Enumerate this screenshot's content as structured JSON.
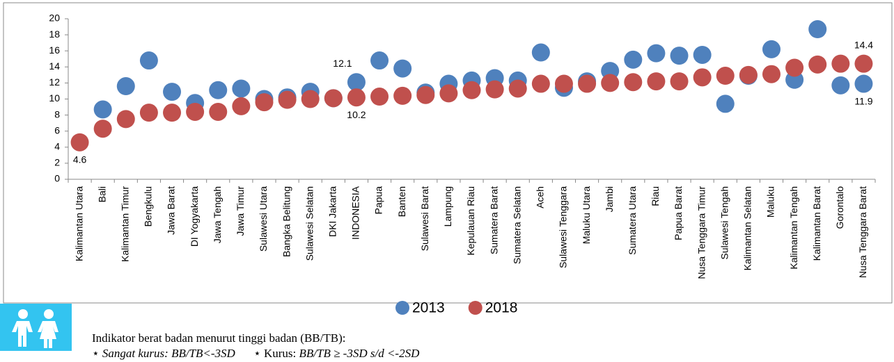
{
  "chart_data": {
    "type": "dot",
    "categories": [
      "Kalimantan Utara",
      "Bali",
      "Kalimantan Timur",
      "Bengkulu",
      "Jawa Barat",
      "DI Yogyakarta",
      "Jawa Tengah",
      "Jawa Timur",
      "Sulawesi Utara",
      "Bangka Belitung",
      "Sulawesi Selatan",
      "DKI Jakarta",
      "INDONESIA",
      "Papua",
      "Banten",
      "Sulawesi Barat",
      "Lampung",
      "Kepulauan Riau",
      "Sumatera Barat",
      "Sumatera Selatan",
      "Aceh",
      "Sulawesi Tenggara",
      "Maluku Utara",
      "Jambi",
      "Sumatera Utara",
      "Riau",
      "Papua Barat",
      "Nusa Tenggara Timur",
      "Sulawesi Tengah",
      "Kalimantan Selatan",
      "Maluku",
      "Kalimantan Tengah",
      "Kalimantan Barat",
      "Gorontalo",
      "Nusa Tenggara Barat"
    ],
    "series": [
      {
        "name": "2013",
        "color": "#4f81bd",
        "values": [
          null,
          8.7,
          11.6,
          14.8,
          10.9,
          9.5,
          11.1,
          11.3,
          10.0,
          10.2,
          10.9,
          10.1,
          12.1,
          14.8,
          13.8,
          10.8,
          11.9,
          12.3,
          12.6,
          12.3,
          15.8,
          11.4,
          12.2,
          13.5,
          14.9,
          15.7,
          15.4,
          15.5,
          9.4,
          12.9,
          16.2,
          12.4,
          18.7,
          11.7,
          11.9
        ],
        "value_labels": [
          null,
          null,
          null,
          null,
          null,
          null,
          null,
          null,
          null,
          null,
          null,
          null,
          "12.1",
          null,
          null,
          null,
          null,
          null,
          null,
          null,
          null,
          null,
          null,
          null,
          null,
          null,
          null,
          null,
          null,
          null,
          null,
          null,
          null,
          null,
          "11.9"
        ]
      },
      {
        "name": "2018",
        "color": "#c0504d",
        "values": [
          4.6,
          6.3,
          7.5,
          8.3,
          8.3,
          8.4,
          8.4,
          9.1,
          9.6,
          9.9,
          10.0,
          10.1,
          10.2,
          10.3,
          10.4,
          10.5,
          10.7,
          11.1,
          11.2,
          11.3,
          11.9,
          11.9,
          11.9,
          12.0,
          12.1,
          12.2,
          12.2,
          12.7,
          12.9,
          13.0,
          13.1,
          13.9,
          14.3,
          14.4,
          14.4
        ],
        "value_labels": [
          "4.6",
          null,
          null,
          null,
          null,
          null,
          null,
          null,
          null,
          null,
          null,
          null,
          "10.2",
          null,
          null,
          null,
          null,
          null,
          null,
          null,
          null,
          null,
          null,
          null,
          null,
          null,
          null,
          null,
          null,
          null,
          null,
          null,
          null,
          null,
          "14.4"
        ]
      }
    ],
    "ylim": [
      0,
      20
    ],
    "yticks": [
      0,
      2,
      4,
      6,
      8,
      10,
      12,
      14,
      16,
      18,
      20
    ],
    "grid": false,
    "legend": "bottom"
  },
  "note": {
    "title": "Indikator berat badan menurut tinggi badan (BB/TB):",
    "items": [
      {
        "label": "Sangat kurus:",
        "rule": "BB/TB<-3SD"
      },
      {
        "label": "Kurus:",
        "rule": "BB/TB ≥ -3SD s/d <-2SD"
      }
    ]
  }
}
